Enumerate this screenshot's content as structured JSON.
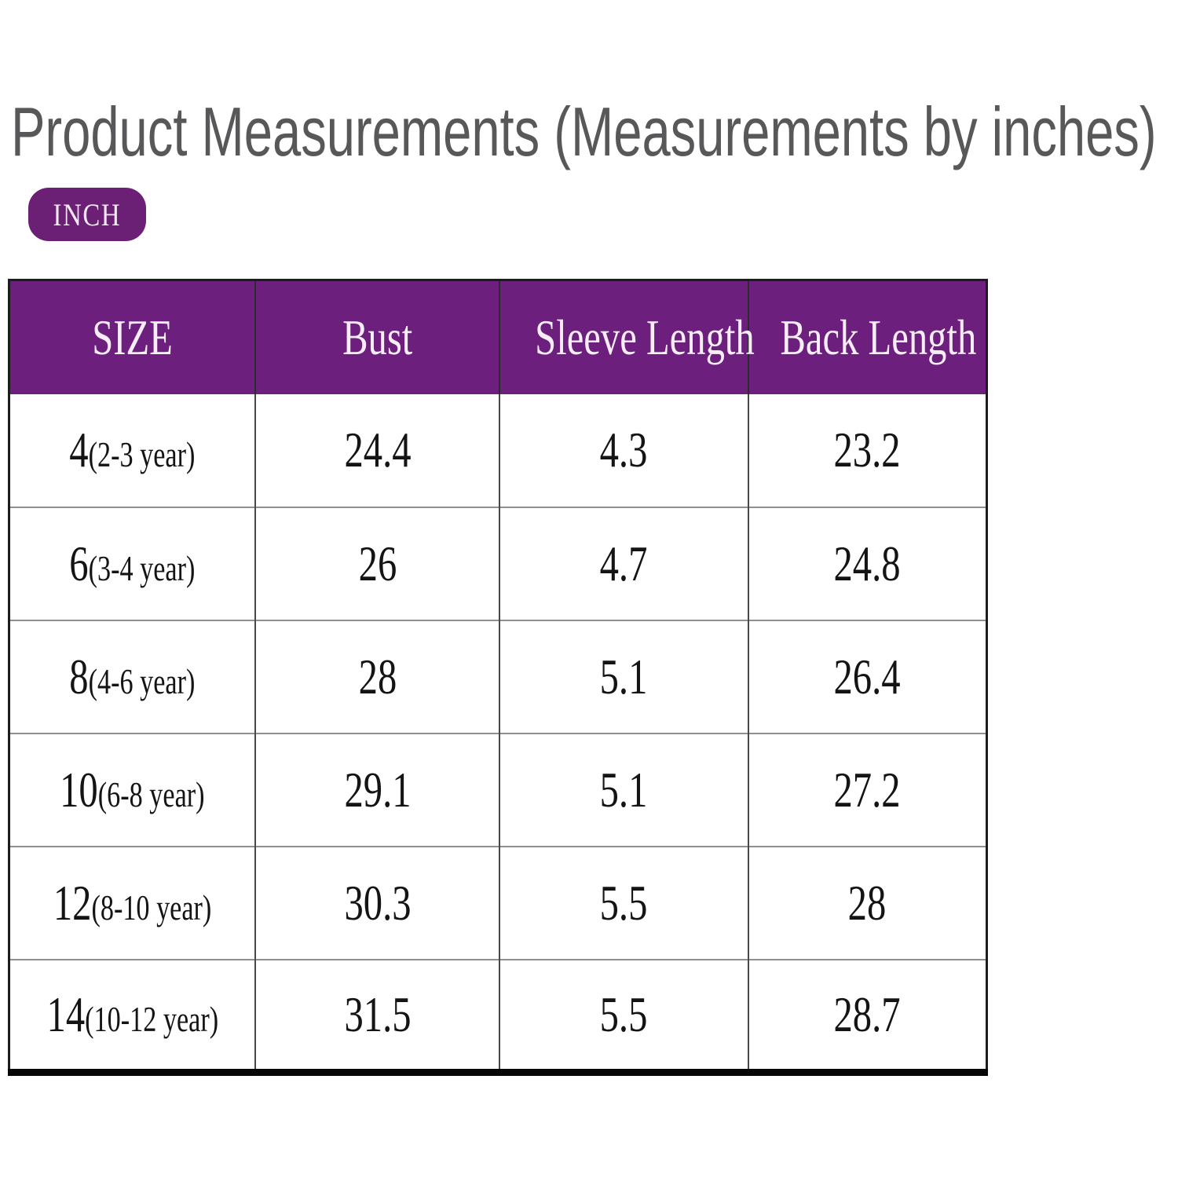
{
  "header": {
    "title": "Product Measurements (Measurements by inches)",
    "unit_badge": "INCH"
  },
  "table": {
    "headers": [
      "SIZE",
      "Bust",
      "Sleeve Length",
      "Back Length"
    ],
    "rows": [
      {
        "size": "4",
        "age": "(2-3 year)",
        "bust": "24.4",
        "sleeve": "4.3",
        "back": "23.2"
      },
      {
        "size": "6",
        "age": "(3-4 year)",
        "bust": "26",
        "sleeve": "4.7",
        "back": "24.8"
      },
      {
        "size": "8",
        "age": "(4-6 year)",
        "bust": "28",
        "sleeve": "5.1",
        "back": "26.4"
      },
      {
        "size": "10",
        "age": "(6-8 year)",
        "bust": "29.1",
        "sleeve": "5.1",
        "back": "27.2"
      },
      {
        "size": "12",
        "age": "(8-10 year)",
        "bust": "30.3",
        "sleeve": "5.5",
        "back": "28"
      },
      {
        "size": "14",
        "age": "(10-12 year)",
        "bust": "31.5",
        "sleeve": "5.5",
        "back": "28.7"
      }
    ]
  },
  "chart_data": {
    "type": "table",
    "title": "Product Measurements (Measurements by inches)",
    "unit": "inches",
    "columns": [
      "SIZE",
      "Bust",
      "Sleeve Length",
      "Back Length"
    ],
    "rows": [
      [
        "4(2-3 year)",
        24.4,
        4.3,
        23.2
      ],
      [
        "6(3-4 year)",
        26,
        4.7,
        24.8
      ],
      [
        "8(4-6 year)",
        28,
        5.1,
        26.4
      ],
      [
        "10(6-8 year)",
        29.1,
        5.1,
        27.2
      ],
      [
        "12(8-10 year)",
        30.3,
        5.5,
        28
      ],
      [
        "14(10-12 year)",
        31.5,
        5.5,
        28.7
      ]
    ],
    "layout": {
      "header_fill": "#6d1f7e",
      "header_text": "#f7edf7",
      "grid": true
    }
  },
  "colors": {
    "header_purple": "#6d1f7e",
    "badge_purple": "#6b2076",
    "title_gray": "#58585a",
    "row_rule_gray": "#8f8f8f",
    "column_rule_dark": "#484848"
  }
}
